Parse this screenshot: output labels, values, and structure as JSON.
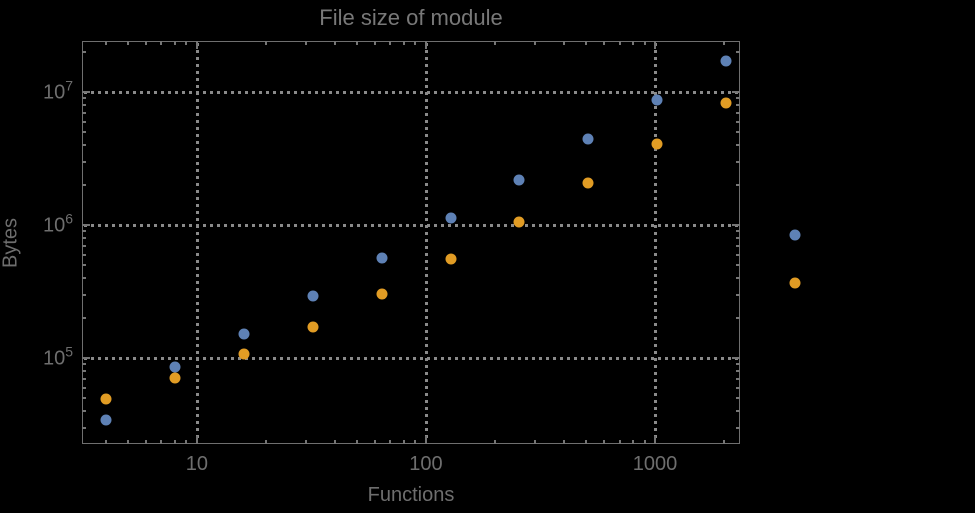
{
  "chart_data": {
    "type": "scatter",
    "title": "File size of module",
    "xlabel": "Functions",
    "ylabel": "Bytes",
    "xscale": "log",
    "yscale": "log",
    "xlim": [
      3.15,
      2350
    ],
    "ylim": [
      22600,
      24200000
    ],
    "grid": "dotted-at-decades",
    "legend": "none",
    "x": [
      4,
      8,
      16,
      32,
      64,
      128,
      256,
      512,
      1024,
      2048,
      4096
    ],
    "series": [
      {
        "name": "blue-series",
        "color": "#5e81b5",
        "values": [
          34000,
          85000,
          152000,
          291000,
          566000,
          1130000,
          2190000,
          4420000,
          8700000,
          17100000,
          840000
        ]
      },
      {
        "name": "orange-series",
        "color": "#e19c24",
        "values": [
          49000,
          71000,
          108000,
          170000,
          305000,
          556000,
          1050000,
          2070000,
          4100000,
          8300000,
          368000
        ]
      }
    ],
    "x_ticks": [
      {
        "value": 10,
        "label": "10"
      },
      {
        "value": 100,
        "label": "100"
      },
      {
        "value": 1000,
        "label": "1000"
      }
    ],
    "y_ticks": [
      {
        "value": 100000,
        "base": "10",
        "exp": "5"
      },
      {
        "value": 1000000,
        "base": "10",
        "exp": "6"
      },
      {
        "value": 10000000,
        "base": "10",
        "exp": "7"
      }
    ]
  },
  "colors": {
    "background": "#000000",
    "title_text": "#787878",
    "label_text": "#6e6e6e",
    "frame": "#6f6f6f",
    "grid": "#8a8a8a",
    "tick": "#767676",
    "point_blue": "#5e81b5",
    "point_orange": "#e19c24"
  }
}
